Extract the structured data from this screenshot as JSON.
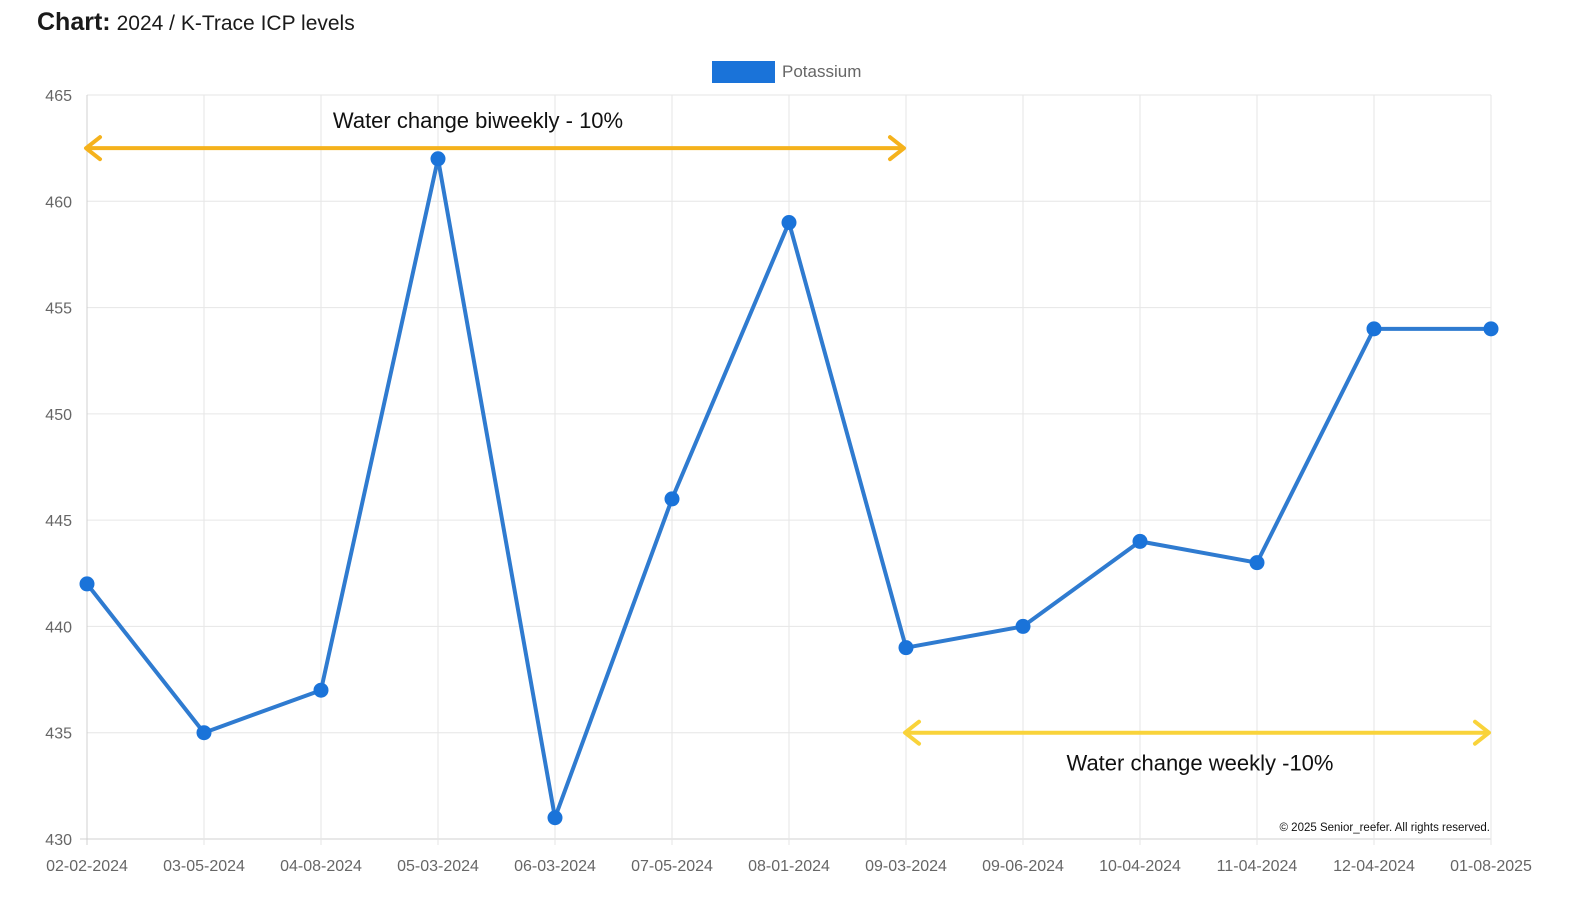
{
  "header": {
    "label": "Chart:",
    "title": "2024 / K-Trace ICP levels"
  },
  "copyright": "© 2025 Senior_reefer. All rights reserved.",
  "colors": {
    "series": "#2f7bd0",
    "legend_swatch": "#1a73d9",
    "biweekly_arrow": "#f5b21c",
    "weekly_arrow": "#f9d33a",
    "grid": "#e6e6e6"
  },
  "chart_data": {
    "type": "line",
    "title": "2024 / K-Trace ICP levels",
    "xlabel": "",
    "ylabel": "",
    "categories": [
      "02-02-2024",
      "03-05-2024",
      "04-08-2024",
      "05-03-2024",
      "06-03-2024",
      "07-05-2024",
      "08-01-2024",
      "09-03-2024",
      "09-06-2024",
      "10-04-2024",
      "11-04-2024",
      "12-04-2024",
      "01-08-2025"
    ],
    "series": [
      {
        "name": "Potassium",
        "values": [
          442,
          435,
          437,
          462,
          431,
          446,
          459,
          439,
          440,
          444,
          443,
          454,
          454
        ]
      }
    ],
    "ylim": [
      430,
      465
    ],
    "yticks": [
      430,
      435,
      440,
      445,
      450,
      455,
      460,
      465
    ],
    "grid": true,
    "legend_position": "top-center",
    "annotations": [
      {
        "text": "Water change biweekly - 10%",
        "from": "02-02-2024",
        "to": "09-03-2024",
        "y_value": 462.5
      },
      {
        "text": "Water change weekly -10%",
        "from": "09-03-2024",
        "to": "01-08-2025",
        "y_value": 435
      }
    ]
  }
}
